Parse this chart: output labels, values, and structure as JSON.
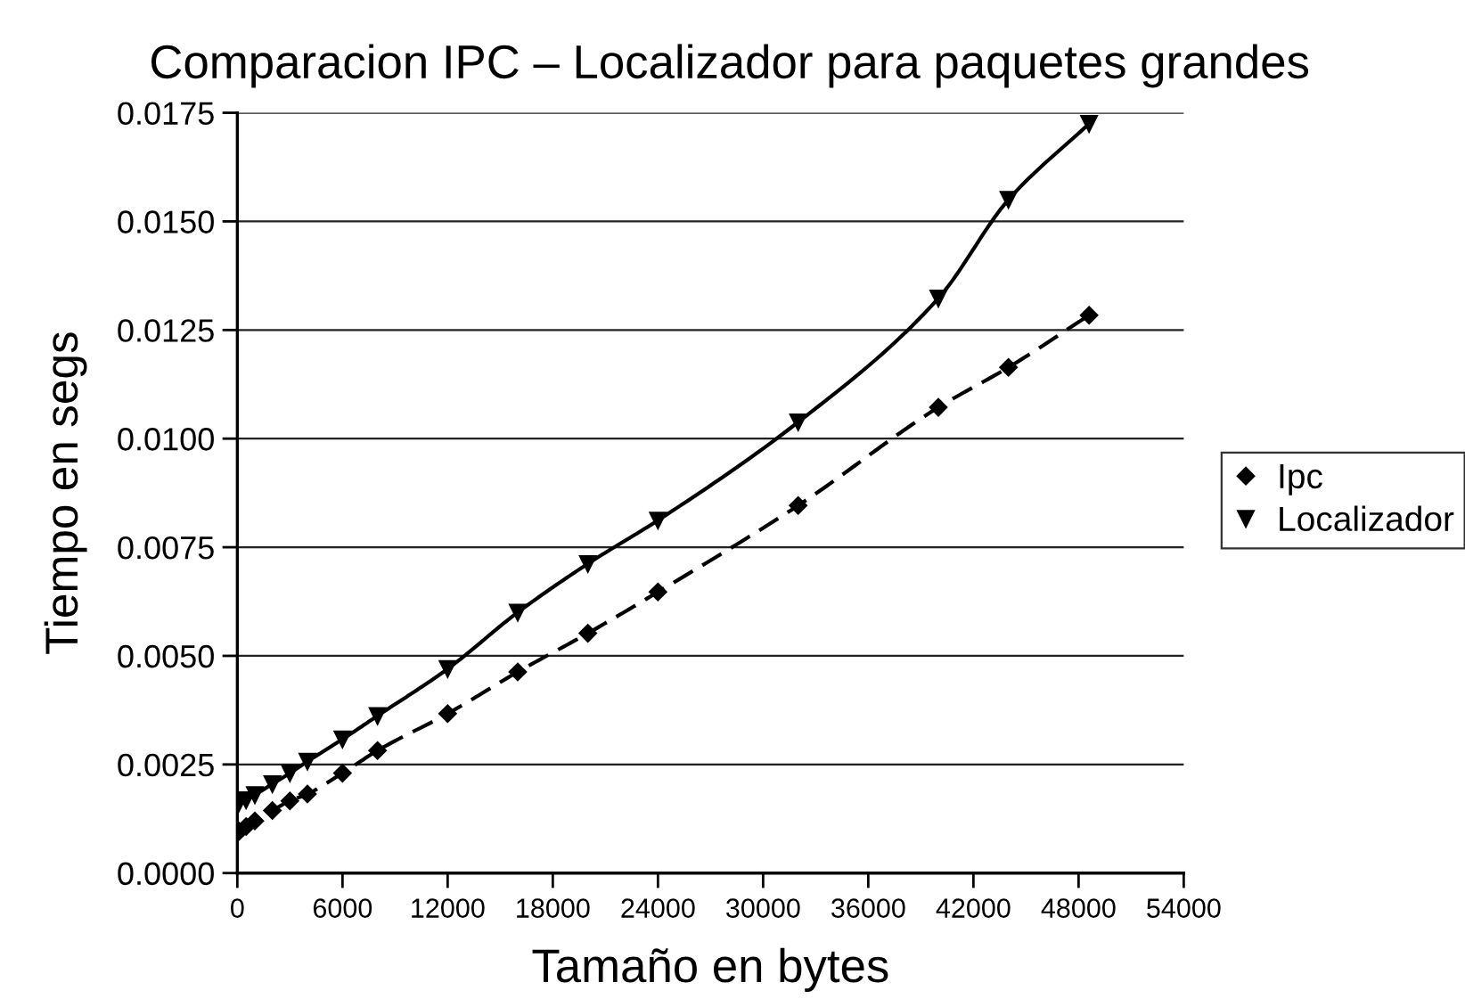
{
  "chart_data": {
    "type": "line",
    "title": "Comparacion IPC – Localizador para paquetes grandes",
    "xlabel": "Tamaño en bytes",
    "ylabel": "Tiempo en segs",
    "x": [
      100,
      500,
      1000,
      2000,
      3000,
      4000,
      6000,
      8000,
      12000,
      16000,
      20000,
      24000,
      32000,
      40000,
      44000,
      48600
    ],
    "series": [
      {
        "name": "Ipc",
        "color": "#000000",
        "marker": "diamond",
        "line_style": "dashed",
        "values": [
          0.00096,
          0.00107,
          0.0012,
          0.00144,
          0.00166,
          0.00182,
          0.0023,
          0.00282,
          0.00367,
          0.00463,
          0.00552,
          0.00647,
          0.00846,
          0.01072,
          0.01164,
          0.01284
        ]
      },
      {
        "name": "Localizador",
        "color": "#000000",
        "marker": "triangle",
        "line_style": "solid",
        "values": [
          0.00162,
          0.00168,
          0.0018,
          0.00205,
          0.0023,
          0.00257,
          0.00308,
          0.00362,
          0.0047,
          0.006,
          0.00712,
          0.00812,
          0.01038,
          0.01323,
          0.0155,
          0.01725
        ]
      }
    ],
    "xlim": [
      0,
      54000
    ],
    "xticks": [
      0,
      6000,
      12000,
      18000,
      24000,
      30000,
      36000,
      42000,
      48000,
      54000
    ],
    "ylim": [
      0,
      0.0175
    ],
    "yticks": [
      {
        "value": 0,
        "label": "0.0000"
      },
      0.0025,
      {
        "value": 0.005,
        "label": "0.0050"
      },
      0.0075,
      {
        "value": 0.01,
        "label": "0.0100"
      },
      0.0125,
      {
        "value": 0.015,
        "label": "0.0150"
      },
      0.0175
    ],
    "grid": "y",
    "legend": "right"
  }
}
